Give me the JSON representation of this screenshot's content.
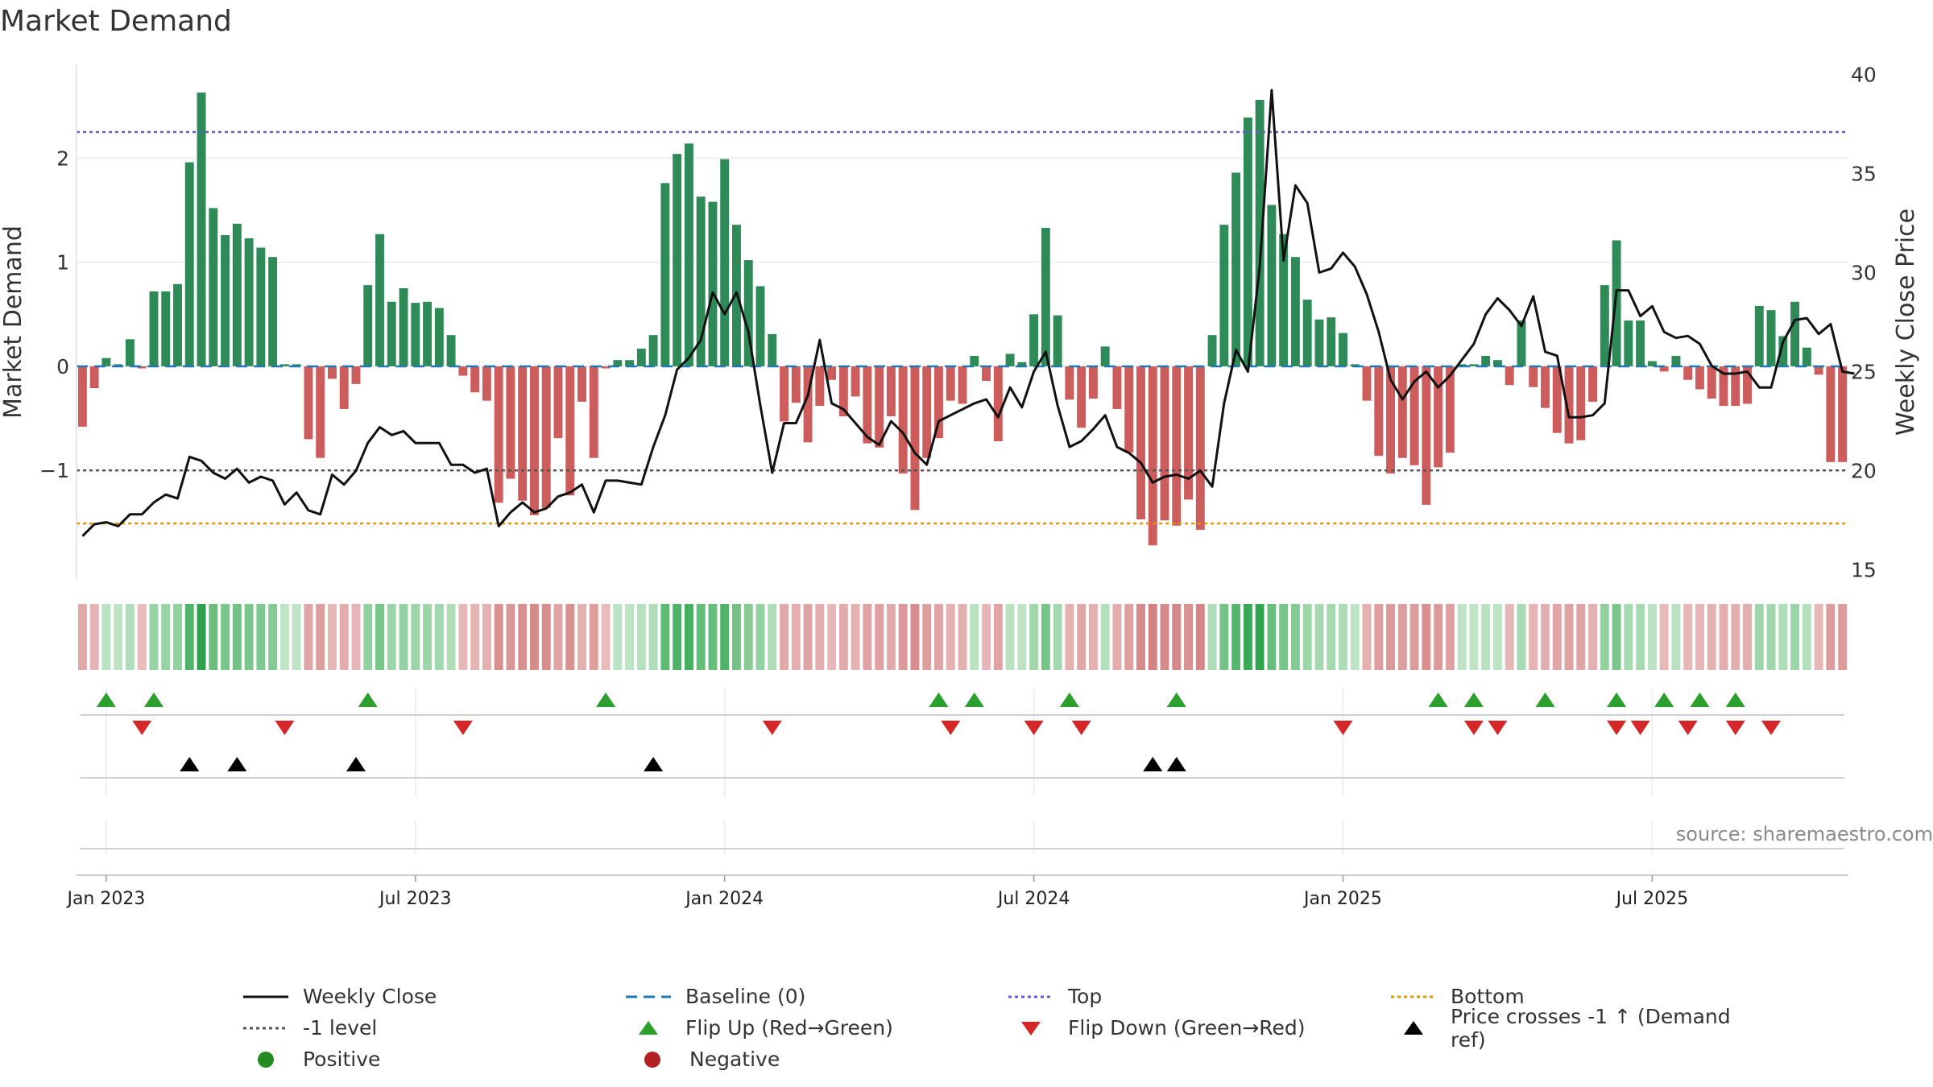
{
  "title": "Market Demand",
  "source": "source: sharemaestro.com",
  "colors": {
    "positive": "#2e8b57",
    "negative": "#cd5c5c",
    "price": "#111111",
    "baseline": "#1f77b4",
    "top": "#6a5acd",
    "bottom": "#e69500",
    "minus1": "#555555",
    "flip_up": "#2ca02c",
    "flip_down": "#d62728",
    "cross": "#000000",
    "legend_positive": "#228b22",
    "legend_negative": "#b22222"
  },
  "chart_data": {
    "type": "bar+line",
    "title": "Market Demand",
    "ylabel_left": "Market Demand",
    "ylabel_right": "Weekly Close Price",
    "ylim_left": [
      -2.05,
      2.9
    ],
    "ylim_right": [
      14.5,
      40.5
    ],
    "yticks_left": [
      2,
      1,
      0,
      -1
    ],
    "yticks_left_labels": [
      "2",
      "1",
      "0",
      "−1"
    ],
    "yticks_right": [
      40,
      35,
      30,
      25,
      20,
      15
    ],
    "x_ticks": [
      {
        "label": "Jan 2023",
        "week": 2
      },
      {
        "label": "Jul 2023",
        "week": 28
      },
      {
        "label": "Jan 2024",
        "week": 54
      },
      {
        "label": "Jul 2024",
        "week": 80
      },
      {
        "label": "Jan 2025",
        "week": 106
      },
      {
        "label": "Jul 2025",
        "week": 132
      }
    ],
    "levels": {
      "top": 2.25,
      "bottom": -1.51,
      "minus1": -1.0,
      "baseline": 0
    },
    "demand": [
      -0.58,
      -0.21,
      0.08,
      0.02,
      0.26,
      -0.02,
      0.72,
      0.72,
      0.79,
      1.96,
      2.63,
      1.52,
      1.26,
      1.37,
      1.23,
      1.14,
      1.05,
      0.02,
      0.02,
      -0.7,
      -0.88,
      -0.12,
      -0.41,
      -0.17,
      0.78,
      1.27,
      0.62,
      0.75,
      0.61,
      0.62,
      0.56,
      0.3,
      -0.09,
      -0.25,
      -0.33,
      -1.31,
      -1.08,
      -1.29,
      -1.43,
      -1.36,
      -0.69,
      -1.24,
      -0.34,
      -0.88,
      -0.02,
      0.06,
      0.06,
      0.17,
      0.3,
      1.76,
      2.04,
      2.14,
      1.63,
      1.58,
      1.99,
      1.36,
      1.02,
      0.77,
      0.31,
      -0.53,
      -0.35,
      -0.73,
      -0.38,
      -0.13,
      -0.48,
      -0.29,
      -0.74,
      -0.78,
      -0.48,
      -1.03,
      -1.38,
      -0.88,
      -0.69,
      -0.33,
      -0.36,
      0.1,
      -0.14,
      -0.72,
      0.12,
      0.04,
      0.5,
      1.33,
      0.49,
      -0.32,
      -0.59,
      -0.31,
      0.19,
      -0.41,
      -0.83,
      -1.47,
      -1.72,
      -1.48,
      -1.53,
      -1.28,
      -1.57,
      0.3,
      1.36,
      1.86,
      2.39,
      2.56,
      1.55,
      1.27,
      1.05,
      0.64,
      0.45,
      0.47,
      0.32,
      0.02,
      -0.33,
      -0.86,
      -1.03,
      -0.88,
      -0.95,
      -1.33,
      -0.97,
      -0.83,
      0.02,
      0.02,
      0.1,
      0.06,
      -0.18,
      0.44,
      -0.2,
      -0.4,
      -0.64,
      -0.74,
      -0.71,
      -0.34,
      0.78,
      1.21,
      0.44,
      0.44,
      0.05,
      -0.05,
      0.1,
      -0.13,
      -0.22,
      -0.31,
      -0.38,
      -0.38,
      -0.36,
      0.58,
      0.54,
      0.29,
      0.62,
      0.18,
      -0.08,
      -0.92,
      -0.92
    ],
    "price": [
      16.7,
      17.3,
      17.4,
      17.2,
      17.8,
      17.8,
      18.4,
      18.8,
      18.6,
      20.7,
      20.5,
      19.9,
      19.6,
      20.1,
      19.4,
      19.7,
      19.5,
      18.3,
      18.9,
      18.0,
      17.8,
      19.8,
      19.3,
      20.0,
      21.4,
      22.2,
      21.8,
      22.0,
      21.4,
      21.4,
      21.4,
      20.3,
      20.3,
      19.9,
      20.1,
      17.2,
      17.9,
      18.4,
      17.9,
      18.1,
      18.7,
      18.9,
      19.3,
      17.9,
      19.5,
      19.5,
      19.4,
      19.3,
      21.2,
      22.8,
      25.1,
      25.7,
      26.6,
      29.0,
      27.9,
      29.0,
      27.0,
      23.3,
      19.9,
      22.4,
      22.4,
      23.8,
      26.6,
      23.4,
      23.1,
      22.4,
      21.7,
      21.3,
      22.5,
      21.9,
      20.9,
      20.3,
      22.5,
      22.8,
      23.1,
      23.4,
      23.6,
      22.7,
      24.2,
      23.2,
      25.0,
      26.0,
      23.3,
      21.2,
      21.5,
      22.1,
      22.8,
      21.2,
      20.9,
      20.4,
      19.4,
      19.7,
      19.8,
      19.6,
      20.0,
      19.2,
      23.4,
      26.1,
      25.0,
      30.3,
      39.2,
      30.6,
      34.4,
      33.5,
      30.0,
      30.2,
      31.0,
      30.3,
      28.9,
      27.0,
      24.6,
      23.6,
      24.5,
      25.0,
      24.2,
      24.8,
      25.6,
      26.4,
      27.9,
      28.7,
      28.1,
      27.3,
      28.8,
      26.0,
      25.8,
      22.7,
      22.7,
      22.8,
      23.4,
      29.1,
      29.1,
      27.8,
      28.3,
      27.0,
      26.7,
      26.8,
      26.4,
      25.3,
      24.9,
      24.9,
      25.0,
      24.2,
      24.2,
      26.5,
      27.6,
      27.7,
      26.9,
      27.4,
      25.0,
      24.9
    ],
    "strip_legend": "bar shade encodes demand (green = positive, red = negative)",
    "flip_up_weeks": [
      2,
      6,
      24,
      44,
      72,
      75,
      83,
      92,
      114,
      117,
      123,
      129,
      133,
      136,
      139
    ],
    "flip_down_weeks": [
      5,
      17,
      32,
      58,
      73,
      80,
      84,
      106,
      117,
      119,
      129,
      131,
      135,
      139,
      142
    ],
    "cross_weeks": [
      9,
      13,
      23,
      48,
      90,
      92
    ],
    "legend": [
      {
        "key": "weekly_close",
        "label": "Weekly Close"
      },
      {
        "key": "baseline",
        "label": "Baseline (0)"
      },
      {
        "key": "top",
        "label": "Top"
      },
      {
        "key": "bottom",
        "label": "Bottom"
      },
      {
        "key": "minus1",
        "label": "-1 level"
      },
      {
        "key": "flip_up",
        "label": "Flip Up (Red→Green)"
      },
      {
        "key": "flip_down",
        "label": "Flip Down (Green→Red)"
      },
      {
        "key": "cross",
        "label": "Price crosses -1 ↑ (Demand ref)"
      },
      {
        "key": "positive",
        "label": "Positive"
      },
      {
        "key": "negative",
        "label": "Negative"
      }
    ]
  }
}
